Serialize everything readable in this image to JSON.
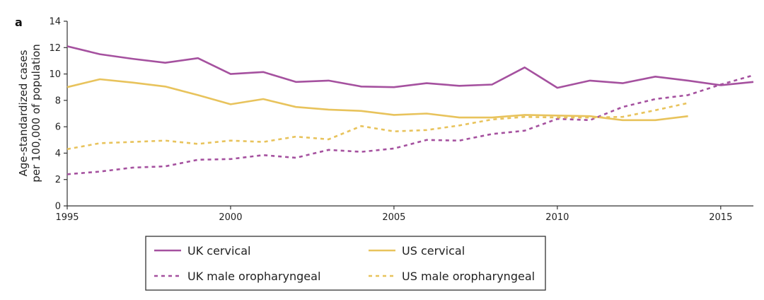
{
  "chart_data": {
    "type": "line",
    "panel_label": "a",
    "ylabel_line1": "Age-standardized cases",
    "ylabel_line2": "per 100,000 of population",
    "xlabel": "",
    "xlim": [
      1995,
      2016
    ],
    "ylim": [
      0,
      14
    ],
    "x_ticks": [
      1995,
      2000,
      2005,
      2010,
      2015
    ],
    "y_ticks": [
      0,
      2,
      4,
      6,
      8,
      10,
      12,
      14
    ],
    "grid": false,
    "legend_position": "bottom-center",
    "colors": {
      "uk": "#a5519f",
      "us": "#e8c35c"
    },
    "series": [
      {
        "name": "UK cervical",
        "style": "solid",
        "color": "#a5519f",
        "x": [
          1995,
          1996,
          1997,
          1998,
          1999,
          2000,
          2001,
          2002,
          2003,
          2004,
          2005,
          2006,
          2007,
          2008,
          2009,
          2010,
          2011,
          2012,
          2013,
          2014,
          2015,
          2016
        ],
        "values": [
          12.1,
          11.5,
          11.15,
          10.85,
          11.2,
          10.0,
          10.15,
          9.4,
          9.5,
          9.05,
          9.0,
          9.3,
          9.1,
          9.2,
          10.5,
          8.95,
          9.5,
          9.3,
          9.8,
          9.5,
          9.15,
          9.4
        ]
      },
      {
        "name": "US cervical",
        "style": "solid",
        "color": "#e8c35c",
        "x": [
          1995,
          1996,
          1997,
          1998,
          1999,
          2000,
          2001,
          2002,
          2003,
          2004,
          2005,
          2006,
          2007,
          2008,
          2009,
          2010,
          2011,
          2012,
          2013,
          2014
        ],
        "values": [
          9.0,
          9.6,
          9.35,
          9.05,
          8.4,
          7.7,
          8.1,
          7.5,
          7.3,
          7.2,
          6.9,
          7.0,
          6.7,
          6.7,
          6.9,
          6.85,
          6.8,
          6.5,
          6.5,
          6.8
        ]
      },
      {
        "name": "UK male oropharyngeal",
        "style": "dashed",
        "color": "#a5519f",
        "x": [
          1995,
          1996,
          1997,
          1998,
          1999,
          2000,
          2001,
          2002,
          2003,
          2004,
          2005,
          2006,
          2007,
          2008,
          2009,
          2010,
          2011,
          2012,
          2013,
          2014,
          2015,
          2016
        ],
        "values": [
          2.4,
          2.6,
          2.9,
          3.0,
          3.5,
          3.55,
          3.85,
          3.65,
          4.25,
          4.1,
          4.35,
          5.0,
          4.95,
          5.45,
          5.7,
          6.6,
          6.5,
          7.5,
          8.1,
          8.4,
          9.2,
          9.9
        ]
      },
      {
        "name": "US male oropharyngeal",
        "style": "dashed",
        "color": "#e8c35c",
        "x": [
          1995,
          1996,
          1997,
          1998,
          1999,
          2000,
          2001,
          2002,
          2003,
          2004,
          2005,
          2006,
          2007,
          2008,
          2009,
          2010,
          2011,
          2012,
          2013,
          2014
        ],
        "values": [
          4.3,
          4.75,
          4.85,
          4.95,
          4.7,
          4.95,
          4.85,
          5.25,
          5.05,
          6.05,
          5.65,
          5.75,
          6.1,
          6.55,
          6.75,
          6.7,
          6.7,
          6.75,
          7.25,
          7.8
        ]
      }
    ]
  }
}
